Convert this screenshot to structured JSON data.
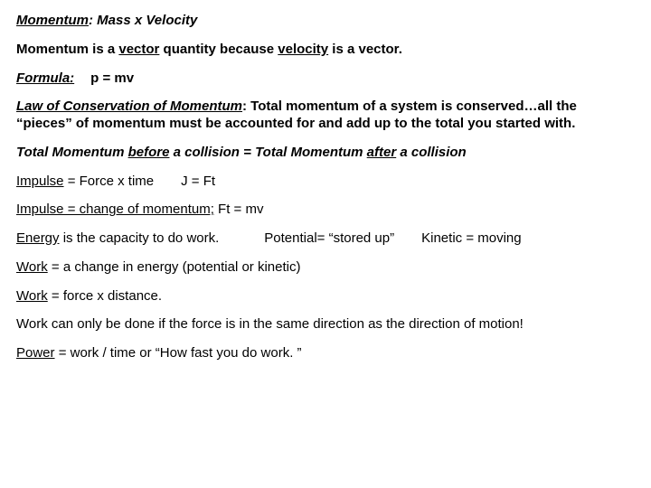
{
  "lines": {
    "l1a": "Momentum",
    "l1b": ":  Mass x Velocity",
    "l2a": "Momentum is a ",
    "l2b": "vector",
    "l2c": " quantity because ",
    "l2d": "velocity",
    "l2e": " is a vector.",
    "l3a": "Formula:",
    "l3b": "p = mv",
    "l4a": "Law of Conservation of Momentum",
    "l4b": ":  Total momentum of a system is conserved…all the “pieces” of momentum must be accounted for and add up to the total you started with.",
    "l5a": "Total Momentum ",
    "l5b": "before",
    "l5c": " a collision = Total Momentum ",
    "l5d": "after",
    "l5e": " a collision",
    "l6a": "Impulse",
    "l6b": " = Force x time",
    "l6c": "J = Ft",
    "l7a": "Impulse = change of momentum;",
    "l7b": "  Ft = mv",
    "l8a": "Energy",
    "l8b": " is the capacity to do work.",
    "l8c": "Potential= “stored up”",
    "l8d": "Kinetic = moving",
    "l9a": "Work",
    "l9b": " = a change in energy (potential or kinetic)",
    "l10a": "Work",
    "l10b": " = force x distance.",
    "l11": "Work can only be done if the force is in the same direction as the direction of motion!",
    "l12a": "Power",
    "l12b": " = work / time  or “How fast you do work. ”"
  }
}
